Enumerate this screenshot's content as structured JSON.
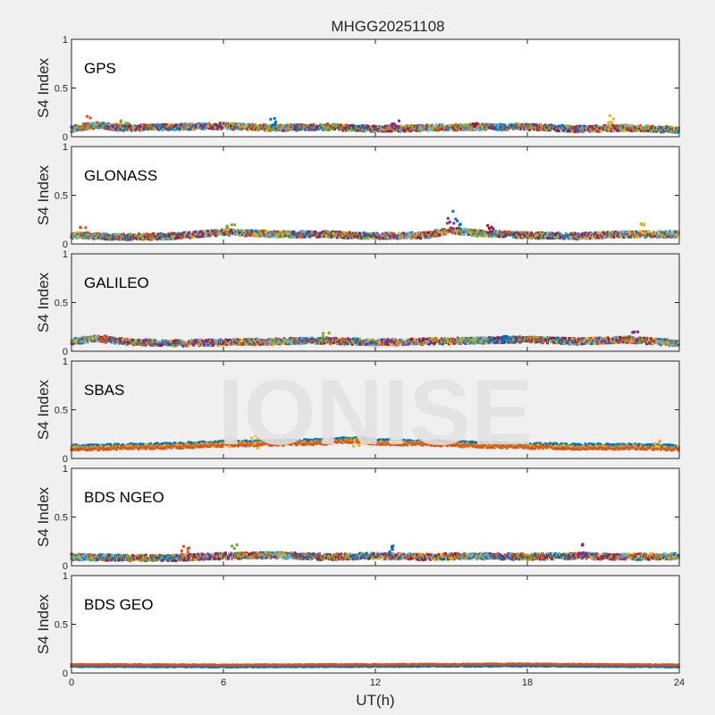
{
  "chart_data": {
    "type": "scatter",
    "title": "MHGG20251108",
    "xlabel": "UT(h)",
    "x_ticks": [
      0,
      6,
      12,
      18,
      24
    ],
    "xlim": [
      0,
      24
    ],
    "watermark": "IONISE",
    "background": "#f0f0f0",
    "plot_background": "#ffffff",
    "watermark_color": "#e3e3e3",
    "color_order": [
      "#0072BD",
      "#D95319",
      "#EDB120",
      "#7E2F8E",
      "#77AC30",
      "#4DBEEE",
      "#A2142F"
    ],
    "panels": [
      {
        "name": "GPS",
        "ylabel": "S4 Index",
        "ylim": [
          0,
          1
        ],
        "y_ticks": [
          0,
          0.5,
          1
        ],
        "series_colors": [
          "#0072BD",
          "#D95319",
          "#EDB120",
          "#7E2F8E",
          "#77AC30",
          "#4DBEEE",
          "#A2142F"
        ],
        "profile": {
          "x": [
            0,
            1,
            2,
            4,
            6,
            8,
            10,
            12,
            14,
            16,
            18,
            20,
            22,
            24
          ],
          "y": [
            0.08,
            0.12,
            0.09,
            0.1,
            0.11,
            0.09,
            0.1,
            0.08,
            0.09,
            0.1,
            0.1,
            0.08,
            0.09,
            0.07
          ]
        },
        "peaks": [
          {
            "x": 0.6,
            "y": 0.22
          },
          {
            "x": 2.1,
            "y": 0.18
          },
          {
            "x": 7.9,
            "y": 0.19
          },
          {
            "x": 12.8,
            "y": 0.17
          },
          {
            "x": 15.9,
            "y": 0.16
          },
          {
            "x": 21.3,
            "y": 0.22
          }
        ]
      },
      {
        "name": "GLONASS",
        "ylabel": "S4 Index",
        "ylim": [
          0,
          1
        ],
        "y_ticks": [
          0,
          0.5,
          1
        ],
        "series_colors": [
          "#0072BD",
          "#D95319",
          "#EDB120",
          "#7E2F8E",
          "#77AC30",
          "#4DBEEE",
          "#A2142F"
        ],
        "profile": {
          "x": [
            0,
            1,
            2,
            4,
            6,
            8,
            10,
            12,
            14,
            15,
            16,
            18,
            20,
            22,
            24
          ],
          "y": [
            0.09,
            0.08,
            0.07,
            0.08,
            0.12,
            0.1,
            0.1,
            0.08,
            0.09,
            0.14,
            0.11,
            0.09,
            0.08,
            0.1,
            0.1
          ]
        },
        "peaks": [
          {
            "x": 0.5,
            "y": 0.18
          },
          {
            "x": 6.3,
            "y": 0.2
          },
          {
            "x": 15.2,
            "y": 0.34
          },
          {
            "x": 15.0,
            "y": 0.28
          },
          {
            "x": 16.6,
            "y": 0.2
          },
          {
            "x": 22.6,
            "y": 0.24
          }
        ]
      },
      {
        "name": "GALILEO",
        "ylabel": "S4 Index",
        "ylim": [
          0,
          1
        ],
        "y_ticks": [
          0,
          0.5,
          1
        ],
        "series_colors": [
          "#0072BD",
          "#D95319",
          "#EDB120",
          "#7E2F8E",
          "#77AC30",
          "#4DBEEE",
          "#A2142F"
        ],
        "profile": {
          "x": [
            0,
            1,
            2,
            4,
            6,
            8,
            10,
            12,
            14,
            16,
            18,
            20,
            22,
            24
          ],
          "y": [
            0.1,
            0.13,
            0.1,
            0.08,
            0.09,
            0.1,
            0.11,
            0.09,
            0.1,
            0.11,
            0.12,
            0.1,
            0.12,
            0.08
          ]
        },
        "peaks": [
          {
            "x": 1.3,
            "y": 0.2
          },
          {
            "x": 10.0,
            "y": 0.2
          },
          {
            "x": 17.2,
            "y": 0.16
          },
          {
            "x": 22.3,
            "y": 0.22
          }
        ]
      },
      {
        "name": "SBAS",
        "ylabel": "S4 Index",
        "ylim": [
          0,
          1
        ],
        "y_ticks": [
          0,
          0.5,
          1
        ],
        "series_colors": [
          "#0072BD",
          "#EDB120",
          "#D95319"
        ],
        "profile": {
          "x": [
            0,
            2,
            4,
            6,
            8,
            10,
            11,
            12,
            14,
            16,
            18,
            20,
            22,
            24
          ],
          "y": [
            0.11,
            0.12,
            0.13,
            0.15,
            0.16,
            0.17,
            0.19,
            0.17,
            0.16,
            0.14,
            0.13,
            0.12,
            0.12,
            0.11
          ]
        },
        "peaks": [
          {
            "x": 6.3,
            "y": 0.22
          },
          {
            "x": 7.3,
            "y": 0.24
          },
          {
            "x": 11.3,
            "y": 0.23
          },
          {
            "x": 23.2,
            "y": 0.18
          }
        ]
      },
      {
        "name": "BDS NGEO",
        "ylabel": "S4 Index",
        "ylim": [
          0,
          1
        ],
        "y_ticks": [
          0,
          0.5,
          1
        ],
        "series_colors": [
          "#0072BD",
          "#D95319",
          "#EDB120",
          "#7E2F8E",
          "#77AC30",
          "#4DBEEE",
          "#A2142F"
        ],
        "profile": {
          "x": [
            0,
            2,
            4,
            6,
            8,
            10,
            12,
            14,
            16,
            18,
            20,
            22,
            24
          ],
          "y": [
            0.09,
            0.08,
            0.08,
            0.1,
            0.11,
            0.09,
            0.1,
            0.09,
            0.1,
            0.09,
            0.1,
            0.09,
            0.1
          ]
        },
        "peaks": [
          {
            "x": 4.5,
            "y": 0.2
          },
          {
            "x": 6.5,
            "y": 0.23
          },
          {
            "x": 12.7,
            "y": 0.24
          },
          {
            "x": 20.2,
            "y": 0.23
          }
        ]
      },
      {
        "name": "BDS GEO",
        "ylabel": "S4 Index",
        "ylim": [
          0,
          1
        ],
        "y_ticks": [
          0,
          0.5,
          1
        ],
        "series_colors": [
          "#0072BD",
          "#D95319"
        ],
        "profile": {
          "x": [
            0,
            6,
            12,
            18,
            24
          ],
          "y": [
            0.08,
            0.075,
            0.08,
            0.085,
            0.075
          ]
        },
        "peaks": []
      }
    ]
  }
}
